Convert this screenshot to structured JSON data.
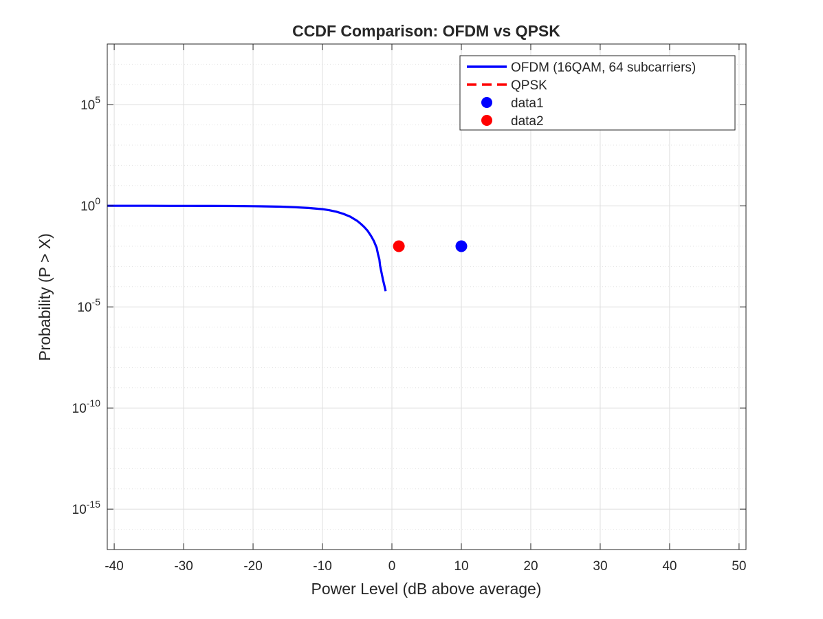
{
  "chart_data": {
    "type": "line",
    "title": "CCDF Comparison: OFDM vs QPSK",
    "xlabel": "Power Level (dB above average)",
    "ylabel": "Probability (P > X)",
    "xlim": [
      -41,
      51
    ],
    "ylim": [
      1e-17,
      100000000.0
    ],
    "yscale": "log",
    "grid": true,
    "minor_grid": true,
    "legend_location": "top-right",
    "x_ticks": [
      -40,
      -30,
      -20,
      -10,
      0,
      10,
      20,
      30,
      40,
      50
    ],
    "x_tick_labels": [
      "-40",
      "-30",
      "-20",
      "-10",
      "0",
      "10",
      "20",
      "30",
      "40",
      "50"
    ],
    "y_ticks": [
      {
        "value": 1e-15,
        "base": "10",
        "exp": "-15"
      },
      {
        "value": 1e-10,
        "base": "10",
        "exp": "-10"
      },
      {
        "value": 1e-05,
        "base": "10",
        "exp": "-5"
      },
      {
        "value": 1,
        "base": "10",
        "exp": "0"
      },
      {
        "value": 100000.0,
        "base": "10",
        "exp": "5"
      }
    ],
    "series": [
      {
        "name": "OFDM (16QAM, 64 subcarriers)",
        "kind": "line",
        "style": "solid",
        "color": "#0000ff",
        "x": [
          -41,
          -38,
          -35,
          -32,
          -29,
          -26,
          -23,
          -20,
          -18,
          -16,
          -14,
          -12,
          -10,
          -9,
          -8,
          -7,
          -6,
          -5,
          -4.5,
          -4,
          -3.5,
          -3,
          -2.6,
          -2.2,
          -2,
          -1.8,
          -1.7,
          -1.5,
          -1.3,
          -1.1,
          -0.9
        ],
        "y": [
          0.999,
          0.998,
          0.997,
          0.995,
          0.99,
          0.985,
          0.975,
          0.955,
          0.93,
          0.9,
          0.85,
          0.78,
          0.68,
          0.6,
          0.51,
          0.4,
          0.29,
          0.18,
          0.13,
          0.09,
          0.058,
          0.032,
          0.018,
          0.0085,
          0.004,
          0.0022,
          0.0011,
          0.0005,
          0.00023,
          0.00012,
          6e-05
        ]
      },
      {
        "name": "QPSK",
        "kind": "line",
        "style": "dashed",
        "color": "#ff0000",
        "x": [],
        "y": []
      },
      {
        "name": "data1",
        "kind": "marker",
        "color": "#0000ff",
        "x": [
          10
        ],
        "y": 0.01
      },
      {
        "name": "data2",
        "kind": "marker",
        "color": "#ff0000",
        "x": [
          1
        ],
        "y": 0.01
      }
    ]
  }
}
